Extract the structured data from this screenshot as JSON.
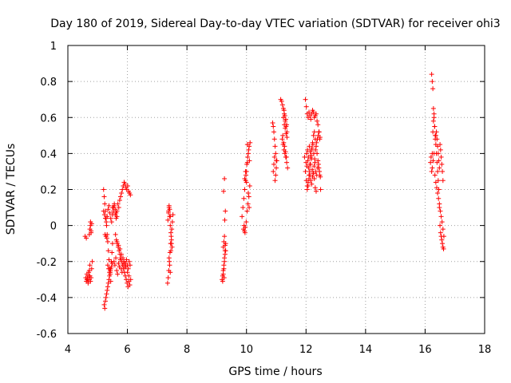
{
  "chart_data": {
    "type": "scatter",
    "title": "Day 180 of 2019, Sidereal Day-to-day VTEC variation (SDTVAR) for receiver ohi3",
    "xlabel": "GPS time / hours",
    "ylabel": "SDTVAR / TECUs",
    "xlim": [
      4,
      18
    ],
    "ylim": [
      -0.6,
      1
    ],
    "xticks": [
      4,
      6,
      8,
      10,
      12,
      14,
      16,
      18
    ],
    "xtick_labels": [
      "4",
      "6",
      "8",
      "10",
      "12",
      "14",
      "16",
      "18"
    ],
    "yticks": [
      -0.6,
      -0.4,
      -0.2,
      0,
      0.2,
      0.4,
      0.6,
      0.8,
      1
    ],
    "ytick_labels": [
      "-0.6",
      "-0.4",
      "-0.2",
      "0",
      "0.2",
      "0.4",
      "0.6",
      "0.8",
      "1"
    ],
    "grid": true,
    "marker": "+",
    "color": "#ff0000",
    "series": [
      {
        "name": "SDTVAR",
        "x": [
          4.58,
          4.6,
          4.62,
          4.64,
          4.66,
          4.68,
          4.7,
          4.72,
          4.74,
          4.76,
          4.78,
          4.8,
          4.62,
          4.64,
          4.66,
          4.68,
          4.7,
          4.72,
          4.74,
          4.76,
          4.78,
          4.8,
          4.82,
          4.72,
          4.74,
          4.76,
          4.78,
          5.2,
          5.22,
          5.24,
          5.26,
          5.28,
          5.3,
          5.32,
          5.34,
          5.36,
          5.38,
          5.4,
          5.42,
          5.44,
          5.22,
          5.24,
          5.26,
          5.28,
          5.3,
          5.32,
          5.34,
          5.36,
          5.38,
          5.4,
          5.42,
          5.44,
          5.46,
          5.48,
          5.5,
          5.25,
          5.28,
          5.31,
          5.34,
          5.37,
          5.4,
          5.43,
          5.46,
          5.49,
          5.2,
          5.23,
          5.26,
          5.29,
          5.32,
          5.35,
          5.38,
          5.41,
          5.44,
          5.47,
          5.5,
          5.53,
          5.56,
          5.59,
          5.62,
          5.65,
          5.5,
          5.53,
          5.56,
          5.59,
          5.62,
          5.65,
          5.68,
          5.71,
          5.74,
          5.77,
          5.8,
          5.83,
          5.86,
          5.89,
          5.92,
          5.95,
          5.98,
          6.01,
          6.04,
          6.07,
          6.1,
          5.55,
          5.58,
          5.61,
          5.64,
          5.67,
          5.7,
          5.73,
          5.76,
          5.79,
          5.82,
          5.85,
          5.88,
          5.91,
          5.94,
          5.97,
          6.0,
          6.03,
          6.06,
          6.09,
          5.6,
          5.63,
          5.66,
          5.69,
          5.72,
          5.75,
          5.78,
          5.81,
          5.84,
          5.87,
          5.9,
          5.93,
          5.96,
          5.99,
          6.02,
          6.05,
          6.08,
          6.11,
          5.65,
          5.7,
          5.75,
          5.8,
          5.85,
          5.9,
          5.95,
          6.0,
          6.05,
          7.35,
          7.37,
          7.39,
          7.41,
          7.43,
          7.45,
          7.47,
          7.49,
          7.51,
          7.53,
          7.38,
          7.4,
          7.42,
          7.44,
          7.46,
          7.48,
          7.5,
          7.4,
          7.42,
          7.44,
          7.46,
          7.48,
          7.36,
          7.38,
          7.4,
          7.42,
          7.44,
          9.18,
          9.2,
          9.22,
          9.24,
          9.26,
          9.28,
          9.3,
          9.2,
          9.22,
          9.24,
          9.26,
          9.28,
          9.22,
          9.24,
          9.26,
          9.28,
          9.3,
          9.25,
          9.27,
          9.29,
          9.23,
          9.26,
          9.85,
          9.88,
          9.91,
          9.94,
          9.97,
          10.0,
          10.03,
          10.06,
          10.09,
          10.12,
          9.9,
          9.93,
          9.96,
          9.99,
          10.02,
          10.05,
          10.08,
          10.11,
          9.92,
          9.95,
          9.98,
          10.01,
          10.04,
          10.07,
          10.1,
          9.94,
          9.97,
          10.0,
          10.03,
          10.06,
          10.09,
          10.88,
          10.9,
          10.92,
          10.94,
          10.96,
          10.98,
          11.0,
          10.9,
          10.92,
          10.94,
          10.96,
          10.98,
          11.0,
          11.02,
          11.15,
          11.18,
          11.21,
          11.24,
          11.27,
          11.3,
          11.33,
          11.36,
          11.2,
          11.23,
          11.26,
          11.29,
          11.32,
          11.35,
          11.38,
          11.22,
          11.25,
          11.28,
          11.31,
          11.34,
          11.24,
          11.27,
          11.3,
          11.33,
          11.36,
          11.26,
          11.29,
          11.32,
          11.35,
          11.95,
          11.98,
          12.01,
          12.04,
          12.07,
          12.1,
          12.13,
          12.16,
          12.19,
          12.22,
          12.25,
          12.28,
          12.31,
          12.34,
          12.37,
          12.4,
          12.43,
          12.46,
          12.49,
          11.98,
          12.01,
          12.04,
          12.07,
          12.1,
          12.13,
          12.16,
          12.19,
          12.22,
          12.25,
          12.28,
          12.31,
          12.34,
          12.37,
          12.4,
          12.43,
          12.46,
          12.0,
          12.03,
          12.06,
          12.09,
          12.12,
          12.15,
          12.18,
          12.21,
          12.24,
          12.27,
          12.3,
          12.33,
          12.36,
          12.39,
          12.42,
          12.45,
          12.48,
          12.02,
          12.05,
          12.08,
          12.11,
          12.14,
          12.17,
          12.2,
          12.23,
          12.26,
          12.29,
          12.32,
          12.35,
          12.38,
          12.41,
          12.44,
          12.47,
          12.04,
          12.07,
          12.1,
          12.13,
          12.16,
          12.19,
          12.22,
          12.25,
          12.28,
          12.31,
          12.34,
          16.18,
          16.2,
          16.22,
          16.24,
          16.26,
          16.28,
          16.3,
          16.32,
          16.34,
          16.36,
          16.38,
          16.4,
          16.42,
          16.44,
          16.46,
          16.48,
          16.5,
          16.52,
          16.54,
          16.56,
          16.58,
          16.6,
          16.62,
          16.22,
          16.24,
          16.26,
          16.28,
          16.3,
          16.32,
          16.34,
          16.36,
          16.38,
          16.4,
          16.42,
          16.44,
          16.46,
          16.48,
          16.5,
          16.52,
          16.54,
          16.56,
          16.58,
          16.6,
          16.24,
          16.27,
          16.3,
          16.33,
          16.36,
          16.39,
          16.42,
          16.45,
          16.48,
          16.51,
          16.54,
          16.57,
          16.6,
          16.63
        ],
        "y": [
          -0.06,
          -0.29,
          -0.31,
          -0.27,
          -0.3,
          -0.32,
          -0.28,
          -0.25,
          -0.22,
          0.0,
          -0.04,
          0.01,
          -0.07,
          -0.3,
          -0.29,
          -0.31,
          -0.26,
          -0.3,
          -0.28,
          -0.31,
          -0.29,
          -0.24,
          -0.2,
          -0.05,
          -0.02,
          0.02,
          -0.03,
          0.2,
          0.16,
          0.12,
          0.08,
          0.04,
          0.0,
          -0.05,
          -0.09,
          -0.14,
          -0.19,
          -0.24,
          -0.27,
          -0.31,
          -0.44,
          -0.46,
          -0.42,
          -0.4,
          -0.38,
          -0.36,
          -0.34,
          -0.32,
          -0.3,
          -0.28,
          -0.26,
          -0.24,
          -0.2,
          -0.15,
          -0.1,
          -0.05,
          -0.06,
          -0.07,
          -0.22,
          -0.24,
          -0.26,
          -0.25,
          -0.23,
          -0.21,
          0.08,
          0.06,
          0.04,
          0.02,
          0.05,
          0.09,
          0.11,
          0.07,
          0.04,
          0.02,
          0.06,
          0.1,
          0.12,
          0.09,
          0.07,
          0.05,
          0.1,
          0.08,
          0.11,
          0.06,
          0.04,
          0.08,
          0.12,
          0.1,
          0.14,
          0.16,
          0.18,
          0.2,
          0.22,
          0.24,
          0.23,
          0.21,
          0.2,
          0.22,
          0.19,
          0.18,
          0.17,
          -0.2,
          -0.22,
          -0.18,
          -0.25,
          -0.27,
          -0.21,
          -0.23,
          -0.19,
          -0.24,
          -0.26,
          -0.22,
          -0.2,
          -0.23,
          -0.21,
          -0.19,
          -0.22,
          -0.24,
          -0.2,
          -0.22,
          -0.05,
          -0.08,
          -0.1,
          -0.12,
          -0.14,
          -0.16,
          -0.18,
          -0.2,
          -0.22,
          -0.24,
          -0.26,
          -0.28,
          -0.3,
          -0.32,
          -0.34,
          -0.31,
          -0.33,
          -0.3,
          -0.09,
          -0.11,
          -0.13,
          -0.16,
          -0.18,
          -0.21,
          -0.23,
          -0.26,
          -0.28,
          -0.32,
          -0.29,
          -0.25,
          -0.2,
          -0.15,
          -0.1,
          -0.06,
          -0.02,
          0.02,
          0.06,
          0.08,
          0.1,
          0.05,
          0.0,
          -0.04,
          -0.08,
          -0.12,
          -0.18,
          -0.22,
          -0.26,
          -0.14,
          -0.1,
          0.03,
          0.07,
          0.11,
          0.09,
          0.05,
          -0.3,
          -0.28,
          -0.25,
          -0.22,
          -0.18,
          -0.14,
          -0.1,
          -0.31,
          -0.27,
          -0.24,
          -0.2,
          -0.16,
          -0.12,
          -0.09,
          -0.06,
          -0.11,
          -0.14,
          -0.29,
          0.03,
          0.08,
          0.19,
          0.26,
          0.05,
          0.1,
          0.15,
          0.2,
          0.25,
          0.3,
          0.35,
          0.4,
          0.44,
          0.46,
          -0.02,
          -0.03,
          -0.01,
          0.02,
          0.08,
          0.12,
          0.16,
          0.22,
          0.0,
          -0.04,
          0.28,
          0.34,
          0.38,
          0.42,
          0.36,
          0.26,
          0.3,
          0.24,
          0.45,
          0.18,
          0.1,
          0.57,
          0.55,
          0.52,
          0.48,
          0.44,
          0.4,
          0.36,
          0.3,
          0.34,
          0.38,
          0.25,
          0.28,
          0.32,
          0.36,
          0.7,
          0.69,
          0.67,
          0.65,
          0.62,
          0.58,
          0.55,
          0.52,
          0.48,
          0.45,
          0.42,
          0.4,
          0.38,
          0.35,
          0.32,
          0.5,
          0.46,
          0.44,
          0.41,
          0.38,
          0.6,
          0.56,
          0.54,
          0.51,
          0.49,
          0.64,
          0.61,
          0.59,
          0.56,
          0.38,
          0.3,
          0.25,
          0.2,
          0.22,
          0.28,
          0.34,
          0.38,
          0.42,
          0.46,
          0.5,
          0.52,
          0.48,
          0.44,
          0.4,
          0.36,
          0.32,
          0.28,
          0.2,
          0.7,
          0.66,
          0.62,
          0.6,
          0.63,
          0.61,
          0.59,
          0.62,
          0.64,
          0.63,
          0.6,
          0.61,
          0.62,
          0.58,
          0.56,
          0.52,
          0.48,
          0.35,
          0.33,
          0.36,
          0.32,
          0.3,
          0.34,
          0.37,
          0.31,
          0.29,
          0.33,
          0.35,
          0.3,
          0.28,
          0.32,
          0.34,
          0.3,
          0.27,
          0.4,
          0.42,
          0.38,
          0.44,
          0.41,
          0.39,
          0.43,
          0.45,
          0.4,
          0.37,
          0.42,
          0.46,
          0.48,
          0.5,
          0.52,
          0.49,
          0.22,
          0.24,
          0.26,
          0.28,
          0.25,
          0.23,
          0.27,
          0.29,
          0.26,
          0.21,
          0.19,
          0.35,
          0.38,
          0.84,
          0.8,
          0.76,
          0.65,
          0.6,
          0.55,
          0.5,
          0.45,
          0.4,
          0.35,
          0.3,
          0.25,
          0.2,
          0.1,
          0.0,
          -0.04,
          -0.06,
          -0.08,
          -0.1,
          -0.12,
          -0.13,
          0.3,
          0.4,
          0.52,
          0.58,
          0.62,
          0.55,
          0.48,
          0.5,
          0.52,
          0.48,
          0.44,
          0.4,
          0.36,
          0.32,
          0.45,
          0.42,
          0.38,
          0.34,
          0.3,
          0.25,
          0.32,
          0.36,
          0.4,
          0.28,
          0.24,
          0.21,
          0.18,
          0.15,
          0.12,
          0.08,
          0.05,
          0.02,
          -0.02,
          -0.06
        ]
      }
    ]
  }
}
